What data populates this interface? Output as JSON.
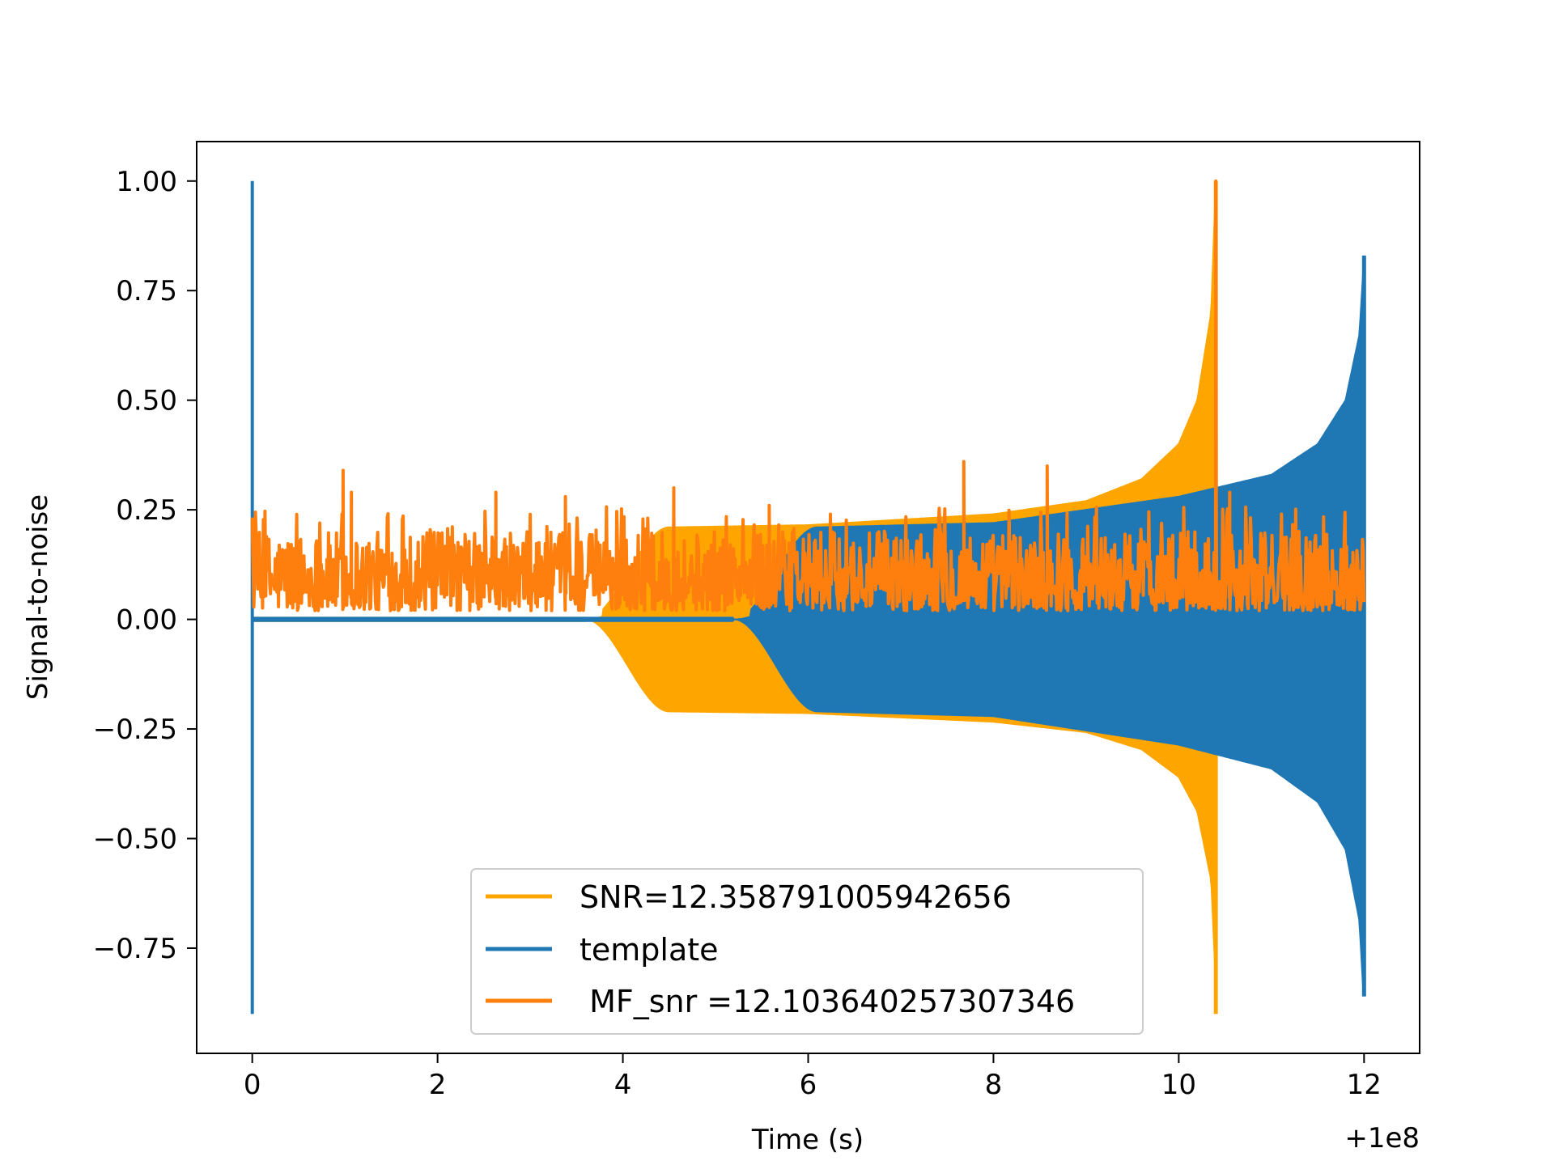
{
  "chart_data": {
    "type": "line",
    "title": "",
    "xlabel": "Time (s)",
    "ylabel": "Signal-to-noise",
    "x_offset_label": "+1e8",
    "xlim": [
      -0.6,
      12.6
    ],
    "ylim": [
      -0.99,
      1.09
    ],
    "x_ticks": [
      0,
      2,
      4,
      6,
      8,
      10,
      12
    ],
    "x_tick_labels": [
      "0",
      "2",
      "4",
      "6",
      "8",
      "10",
      "12"
    ],
    "y_ticks": [
      1.0,
      0.75,
      0.5,
      0.25,
      0.0,
      -0.25,
      -0.5,
      -0.75
    ],
    "y_tick_labels": [
      "1.00",
      "0.75",
      "0.50",
      "0.25",
      "0.00",
      "−0.25",
      "−0.50",
      "−0.75"
    ],
    "grid": false,
    "legend_position": "lower-center",
    "series": [
      {
        "name": "SNR=12.358791005942656",
        "color": "#ffa500",
        "kind": "chirp-envelope",
        "start": 0.0,
        "ramp_start": 3.6,
        "ramp_end": 4.5,
        "peak": 10.4,
        "base_upper": 0.21,
        "base_lower": -0.21,
        "peak_upper": 1.0,
        "peak_lower": -0.9,
        "envelope": [
          [
            4.5,
            0.21
          ],
          [
            6,
            0.215
          ],
          [
            8,
            0.24
          ],
          [
            9,
            0.27
          ],
          [
            9.6,
            0.32
          ],
          [
            10.0,
            0.4
          ],
          [
            10.2,
            0.5
          ],
          [
            10.35,
            0.7
          ],
          [
            10.4,
            1.0
          ]
        ]
      },
      {
        "name": "template",
        "color": "#1f77b4",
        "kind": "chirp-envelope",
        "start": 0.0,
        "ramp_start": 5.2,
        "ramp_end": 6.1,
        "peak": 12.0,
        "base_upper": 0.21,
        "base_lower": -0.21,
        "peak_upper": 0.83,
        "peak_lower": -0.86,
        "spike_at": 0.0,
        "spike_upper": 1.0,
        "spike_lower": -0.9,
        "envelope": [
          [
            6.1,
            0.21
          ],
          [
            8,
            0.22
          ],
          [
            10,
            0.28
          ],
          [
            11,
            0.33
          ],
          [
            11.5,
            0.4
          ],
          [
            11.8,
            0.5
          ],
          [
            11.95,
            0.65
          ],
          [
            12.0,
            0.83
          ]
        ]
      },
      {
        "name": " MF_snr =12.103640257307346",
        "color": "#ff7f0e",
        "kind": "noise",
        "start": 0.0,
        "end": 12.0,
        "baseline_low": 0.02,
        "baseline_high": 0.2,
        "peak_at": 10.4,
        "peak_value": 1.0,
        "outliers": [
          [
            0.98,
            0.34
          ],
          [
            1.07,
            0.29
          ],
          [
            2.63,
            0.29
          ],
          [
            3.38,
            0.28
          ],
          [
            4.55,
            0.3
          ],
          [
            5.58,
            0.26
          ],
          [
            7.68,
            0.36
          ],
          [
            8.58,
            0.35
          ],
          [
            10.1,
            0.2
          ],
          [
            10.55,
            0.29
          ]
        ]
      }
    ]
  }
}
